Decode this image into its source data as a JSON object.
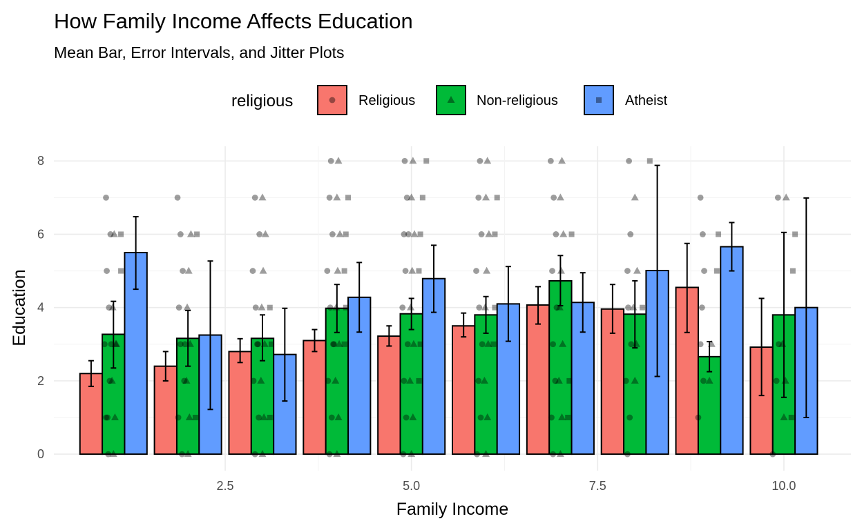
{
  "chart_data": {
    "type": "bar",
    "title": "How Family Income Affects Education",
    "subtitle": "Mean Bar, Error Intervals, and Jitter Plots",
    "xlabel": "Family Income",
    "ylabel": "Education",
    "xlim": [
      0.2,
      10.9
    ],
    "ylim": [
      -0.45,
      8.4
    ],
    "x_ticks": [
      2.5,
      5.0,
      7.5,
      10.0
    ],
    "x_tick_labels": [
      "2.5",
      "5.0",
      "7.5",
      "10.0"
    ],
    "y_ticks": [
      0,
      2,
      4,
      6,
      8
    ],
    "y_tick_labels": [
      "0",
      "2",
      "4",
      "6",
      "8"
    ],
    "grid": true,
    "legend": {
      "title": "religious",
      "position": "top",
      "entries": [
        {
          "label": "Religious",
          "color": "#F8766D",
          "shape": "circle"
        },
        {
          "label": "Non-religious",
          "color": "#00BA38",
          "shape": "triangle"
        },
        {
          "label": "Atheist",
          "color": "#619CFF",
          "shape": "square"
        }
      ]
    },
    "categories": [
      1,
      2,
      3,
      4,
      5,
      6,
      7,
      8,
      9,
      10
    ],
    "series": [
      {
        "name": "Religious",
        "color": "#F8766D",
        "values": [
          2.2,
          2.4,
          2.8,
          3.1,
          3.22,
          3.5,
          4.07,
          3.96,
          4.55,
          2.92
        ],
        "error_low": [
          1.85,
          2.0,
          2.5,
          2.8,
          2.95,
          3.2,
          3.55,
          3.3,
          3.32,
          1.6
        ],
        "error_high": [
          2.55,
          2.8,
          3.15,
          3.4,
          3.5,
          3.85,
          4.57,
          4.63,
          5.75,
          4.25
        ],
        "jitter": [
          [
            0.93,
            0
          ],
          [
            0.9,
            1
          ],
          [
            0.95,
            2
          ],
          [
            0.88,
            3
          ],
          [
            0.94,
            4
          ],
          [
            0.91,
            5
          ],
          [
            0.96,
            6
          ],
          [
            0.9,
            7
          ],
          [
            0.97,
            3
          ],
          [
            0.92,
            1
          ],
          [
            1.92,
            0
          ],
          [
            1.87,
            1
          ],
          [
            1.95,
            2
          ],
          [
            1.9,
            3
          ],
          [
            1.88,
            4
          ],
          [
            1.93,
            5
          ],
          [
            1.9,
            6
          ],
          [
            1.86,
            7
          ],
          [
            1.96,
            3
          ],
          [
            2.9,
            0
          ],
          [
            2.95,
            1
          ],
          [
            2.88,
            2
          ],
          [
            2.93,
            3
          ],
          [
            2.91,
            4
          ],
          [
            2.87,
            5
          ],
          [
            2.96,
            6
          ],
          [
            2.9,
            7
          ],
          [
            2.94,
            3
          ],
          [
            3.9,
            0
          ],
          [
            3.93,
            1
          ],
          [
            3.88,
            2
          ],
          [
            3.95,
            3
          ],
          [
            3.91,
            4
          ],
          [
            3.87,
            5
          ],
          [
            3.94,
            6
          ],
          [
            3.9,
            7
          ],
          [
            3.92,
            8
          ],
          [
            3.96,
            3
          ],
          [
            4.89,
            0
          ],
          [
            4.93,
            1
          ],
          [
            4.9,
            2
          ],
          [
            4.95,
            3
          ],
          [
            4.88,
            4
          ],
          [
            4.92,
            5
          ],
          [
            4.9,
            6
          ],
          [
            4.94,
            7
          ],
          [
            4.91,
            8
          ],
          [
            4.96,
            6
          ],
          [
            5.88,
            0
          ],
          [
            5.93,
            1
          ],
          [
            5.9,
            2
          ],
          [
            5.95,
            3
          ],
          [
            5.91,
            4
          ],
          [
            5.87,
            5
          ],
          [
            5.94,
            6
          ],
          [
            5.9,
            7
          ],
          [
            5.92,
            8
          ],
          [
            6.9,
            0
          ],
          [
            6.88,
            1
          ],
          [
            6.93,
            2
          ],
          [
            6.9,
            3
          ],
          [
            6.95,
            4
          ],
          [
            6.89,
            5
          ],
          [
            6.94,
            6
          ],
          [
            6.91,
            7
          ],
          [
            6.87,
            8
          ],
          [
            7.9,
            0
          ],
          [
            7.93,
            1
          ],
          [
            7.88,
            2
          ],
          [
            7.95,
            3
          ],
          [
            7.91,
            4
          ],
          [
            7.9,
            5
          ],
          [
            7.94,
            6
          ],
          [
            7.92,
            8
          ],
          [
            8.85,
            1
          ],
          [
            8.92,
            2
          ],
          [
            8.88,
            3
          ],
          [
            8.9,
            4
          ],
          [
            8.93,
            5
          ],
          [
            8.91,
            6
          ],
          [
            8.88,
            7
          ],
          [
            9.85,
            0
          ],
          [
            9.9,
            2
          ],
          [
            9.93,
            3
          ],
          [
            9.92,
            7
          ]
        ]
      },
      {
        "name": "Non-religious",
        "color": "#00BA38",
        "values": [
          3.27,
          3.16,
          3.16,
          3.98,
          3.83,
          3.8,
          4.73,
          3.82,
          2.66,
          3.8
        ],
        "error_low": [
          2.35,
          2.4,
          2.55,
          3.32,
          3.4,
          3.3,
          4.05,
          2.9,
          2.25,
          1.55
        ],
        "error_high": [
          4.17,
          3.92,
          3.8,
          4.63,
          4.25,
          4.3,
          5.42,
          4.73,
          3.07,
          6.05
        ],
        "jitter": [
          [
            1.0,
            0
          ],
          [
            1.02,
            1
          ],
          [
            0.98,
            2
          ],
          [
            1.03,
            3
          ],
          [
            0.99,
            4
          ],
          [
            1.01,
            6
          ],
          [
            1.04,
            3
          ],
          [
            2.0,
            0
          ],
          [
            2.02,
            1
          ],
          [
            1.98,
            2
          ],
          [
            2.03,
            3
          ],
          [
            1.99,
            4
          ],
          [
            2.01,
            5
          ],
          [
            2.04,
            6
          ],
          [
            3.0,
            0
          ],
          [
            3.02,
            1
          ],
          [
            2.98,
            2
          ],
          [
            3.03,
            3
          ],
          [
            2.99,
            4
          ],
          [
            3.01,
            5
          ],
          [
            3.04,
            6
          ],
          [
            3.0,
            7
          ],
          [
            4.0,
            0
          ],
          [
            4.02,
            1
          ],
          [
            3.98,
            2
          ],
          [
            4.03,
            3
          ],
          [
            3.99,
            4
          ],
          [
            4.01,
            5
          ],
          [
            4.04,
            6
          ],
          [
            4.0,
            7
          ],
          [
            4.02,
            8
          ],
          [
            5.0,
            0
          ],
          [
            5.02,
            1
          ],
          [
            4.98,
            2
          ],
          [
            5.03,
            3
          ],
          [
            4.99,
            4
          ],
          [
            5.01,
            5
          ],
          [
            5.04,
            6
          ],
          [
            5.0,
            7
          ],
          [
            5.02,
            8
          ],
          [
            6.0,
            0
          ],
          [
            6.02,
            1
          ],
          [
            5.98,
            2
          ],
          [
            6.03,
            3
          ],
          [
            5.99,
            4
          ],
          [
            6.01,
            5
          ],
          [
            6.04,
            6
          ],
          [
            6.0,
            7
          ],
          [
            6.02,
            8
          ],
          [
            7.0,
            0
          ],
          [
            7.02,
            1
          ],
          [
            6.98,
            2
          ],
          [
            7.03,
            3
          ],
          [
            6.99,
            4
          ],
          [
            7.01,
            5
          ],
          [
            7.04,
            6
          ],
          [
            7.0,
            7
          ],
          [
            7.02,
            8
          ],
          [
            8.0,
            2
          ],
          [
            8.02,
            3
          ],
          [
            7.98,
            4
          ],
          [
            8.03,
            5
          ],
          [
            8.0,
            7
          ],
          [
            9.0,
            2
          ],
          [
            9.03,
            3
          ],
          [
            10.0,
            1
          ],
          [
            10.02,
            2
          ],
          [
            9.98,
            3
          ],
          [
            10.03,
            7
          ]
        ]
      },
      {
        "name": "Atheist",
        "color": "#619CFF",
        "values": [
          5.5,
          3.25,
          2.72,
          4.28,
          4.79,
          4.1,
          4.14,
          5.01,
          5.66,
          4.0
        ],
        "error_low": [
          4.5,
          1.22,
          1.45,
          3.33,
          3.87,
          3.08,
          3.33,
          2.12,
          5.0,
          1.0
        ],
        "error_high": [
          6.48,
          5.27,
          3.98,
          5.23,
          5.7,
          5.12,
          4.95,
          7.88,
          6.32,
          6.99
        ],
        "jitter": [
          [
            1.1,
            5
          ],
          [
            1.1,
            6
          ],
          [
            2.1,
            1
          ],
          [
            2.12,
            6
          ],
          [
            3.1,
            1
          ],
          [
            3.12,
            3
          ],
          [
            3.1,
            4
          ],
          [
            4.1,
            3
          ],
          [
            4.12,
            4
          ],
          [
            4.1,
            5
          ],
          [
            4.12,
            6
          ],
          [
            4.15,
            7
          ],
          [
            5.1,
            2
          ],
          [
            5.12,
            3
          ],
          [
            5.1,
            5
          ],
          [
            5.12,
            6
          ],
          [
            5.15,
            7
          ],
          [
            5.2,
            8
          ],
          [
            6.1,
            3
          ],
          [
            6.12,
            4
          ],
          [
            6.12,
            6
          ],
          [
            6.15,
            7
          ],
          [
            7.1,
            1
          ],
          [
            7.12,
            2
          ],
          [
            7.15,
            6
          ],
          [
            8.1,
            4
          ],
          [
            8.2,
            8
          ],
          [
            9.1,
            5
          ],
          [
            9.12,
            6
          ],
          [
            10.1,
            1
          ],
          [
            10.12,
            5
          ],
          [
            10.15,
            6
          ]
        ]
      }
    ]
  }
}
